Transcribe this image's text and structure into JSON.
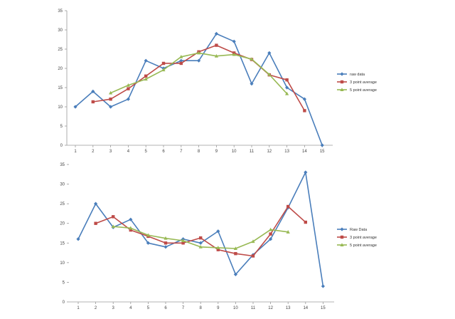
{
  "chart_data": [
    {
      "type": "line",
      "x": [
        1,
        2,
        3,
        4,
        5,
        6,
        7,
        8,
        9,
        10,
        11,
        12,
        13,
        14,
        15
      ],
      "ylim": [
        0,
        35
      ],
      "yticks": [
        0,
        5,
        10,
        15,
        20,
        25,
        30,
        35
      ],
      "legend_position": "right",
      "grid": false,
      "series": [
        {
          "name": "raw data",
          "color": "#4a7ebb",
          "marker": "diamond",
          "x": [
            1,
            2,
            3,
            4,
            5,
            6,
            7,
            8,
            9,
            10,
            11,
            12,
            13,
            14,
            15
          ],
          "values": [
            10,
            14,
            10,
            12,
            22,
            20,
            22,
            22,
            29,
            27,
            16,
            24,
            15,
            12,
            0
          ]
        },
        {
          "name": "3 point average",
          "color": "#be4b48",
          "marker": "square",
          "x": [
            2,
            3,
            4,
            5,
            6,
            7,
            8,
            9,
            10,
            11,
            12,
            13,
            14
          ],
          "values": [
            11.3,
            12,
            14.7,
            18,
            21.3,
            21.3,
            24.3,
            26,
            24,
            22.3,
            18.3,
            17,
            9
          ]
        },
        {
          "name": "5 point average",
          "color": "#98b954",
          "marker": "triangle",
          "x": [
            3,
            4,
            5,
            6,
            7,
            8,
            9,
            10,
            11,
            12,
            13
          ],
          "values": [
            13.6,
            15.6,
            17.2,
            19.6,
            23,
            24,
            23.2,
            23.6,
            22.4,
            18.4,
            13.4
          ]
        }
      ]
    },
    {
      "type": "line",
      "x": [
        1,
        2,
        3,
        4,
        5,
        6,
        7,
        8,
        9,
        10,
        11,
        12,
        13,
        14,
        15
      ],
      "ylim": [
        0,
        35
      ],
      "yticks": [
        0,
        5,
        10,
        15,
        20,
        25,
        30,
        35
      ],
      "legend_position": "right",
      "grid": false,
      "series": [
        {
          "name": "Raw Data",
          "color": "#4a7ebb",
          "marker": "diamond",
          "x": [
            1,
            2,
            3,
            4,
            5,
            6,
            7,
            8,
            9,
            10,
            11,
            12,
            13,
            14,
            15
          ],
          "values": [
            16,
            25,
            19,
            21,
            15,
            14,
            16,
            15,
            18,
            7,
            12,
            16,
            24,
            33,
            4
          ]
        },
        {
          "name": "3 point average",
          "color": "#be4b48",
          "marker": "square",
          "x": [
            2,
            3,
            4,
            5,
            6,
            7,
            8,
            9,
            10,
            11,
            12,
            13,
            14
          ],
          "values": [
            20,
            21.7,
            18.3,
            16.7,
            15,
            15,
            16.3,
            13.3,
            12.3,
            11.7,
            17.3,
            24.3,
            20.3
          ]
        },
        {
          "name": "5 point average",
          "color": "#98b954",
          "marker": "triangle",
          "x": [
            3,
            4,
            5,
            6,
            7,
            8,
            9,
            10,
            11,
            12,
            13
          ],
          "values": [
            19.2,
            18.8,
            17,
            16.2,
            15.6,
            14,
            13.8,
            13.6,
            15.4,
            18.4,
            17.8
          ]
        }
      ]
    }
  ]
}
